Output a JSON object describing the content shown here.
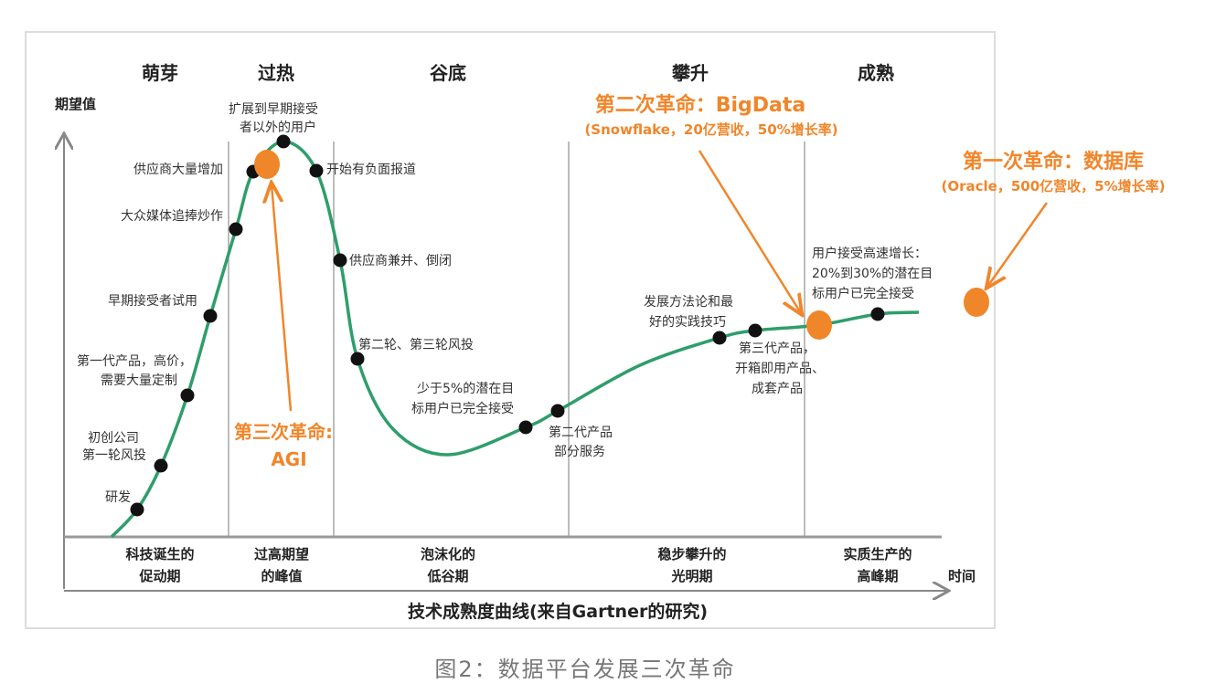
{
  "phases_top": [
    "萌芽",
    "过热",
    "谷底",
    "攀升",
    "成熟"
  ],
  "y_axis_label": "期望值",
  "x_axis_label": "时间",
  "points": [
    "研发",
    "初创公司",
    "第一轮风投",
    "第一代产品，高价，",
    "需要大量定制",
    "早期接受者试用",
    "大众媒体追捧炒作",
    "供应商大量增加",
    "扩展到早期接受",
    "者以外的用户",
    "开始有负面报道",
    "供应商兼并、倒闭",
    "第二轮、第三轮风投",
    "少于5%的潜在目",
    "标用户已完全接受",
    "第二代产品",
    "部分服务",
    "发展方法论和最",
    "好的实践技巧",
    "第三代产品，",
    "开箱即用产品、",
    "成套产品",
    "用户接受高速增长：",
    "20%到30%的潜在目",
    "标用户已完全接受"
  ],
  "phases_bottom": [
    [
      "科技诞生的",
      "促动期"
    ],
    [
      "过高期望",
      "的峰值"
    ],
    [
      "泡沫化的",
      "低谷期"
    ],
    [
      "稳步攀升的",
      "光明期"
    ],
    [
      "实质生产的",
      "高峰期"
    ]
  ],
  "revolutions": {
    "third": {
      "title": "第三次革命:",
      "name": "AGI"
    },
    "second": {
      "title": "第二次革命：BigData",
      "detail": "(Snowflake，20亿营收，50%增长率)"
    },
    "first": {
      "title": "第一次革命：数据库",
      "detail": "(Oracle，500亿营收，5%增长率)"
    }
  },
  "chart_title": "技术成熟度曲线(来自Gartner的研究)",
  "caption": "图2：数据平台发展三次革命",
  "colors": {
    "curve": "#2e9e6a",
    "accent": "#f0862a",
    "dot": "#111111"
  }
}
